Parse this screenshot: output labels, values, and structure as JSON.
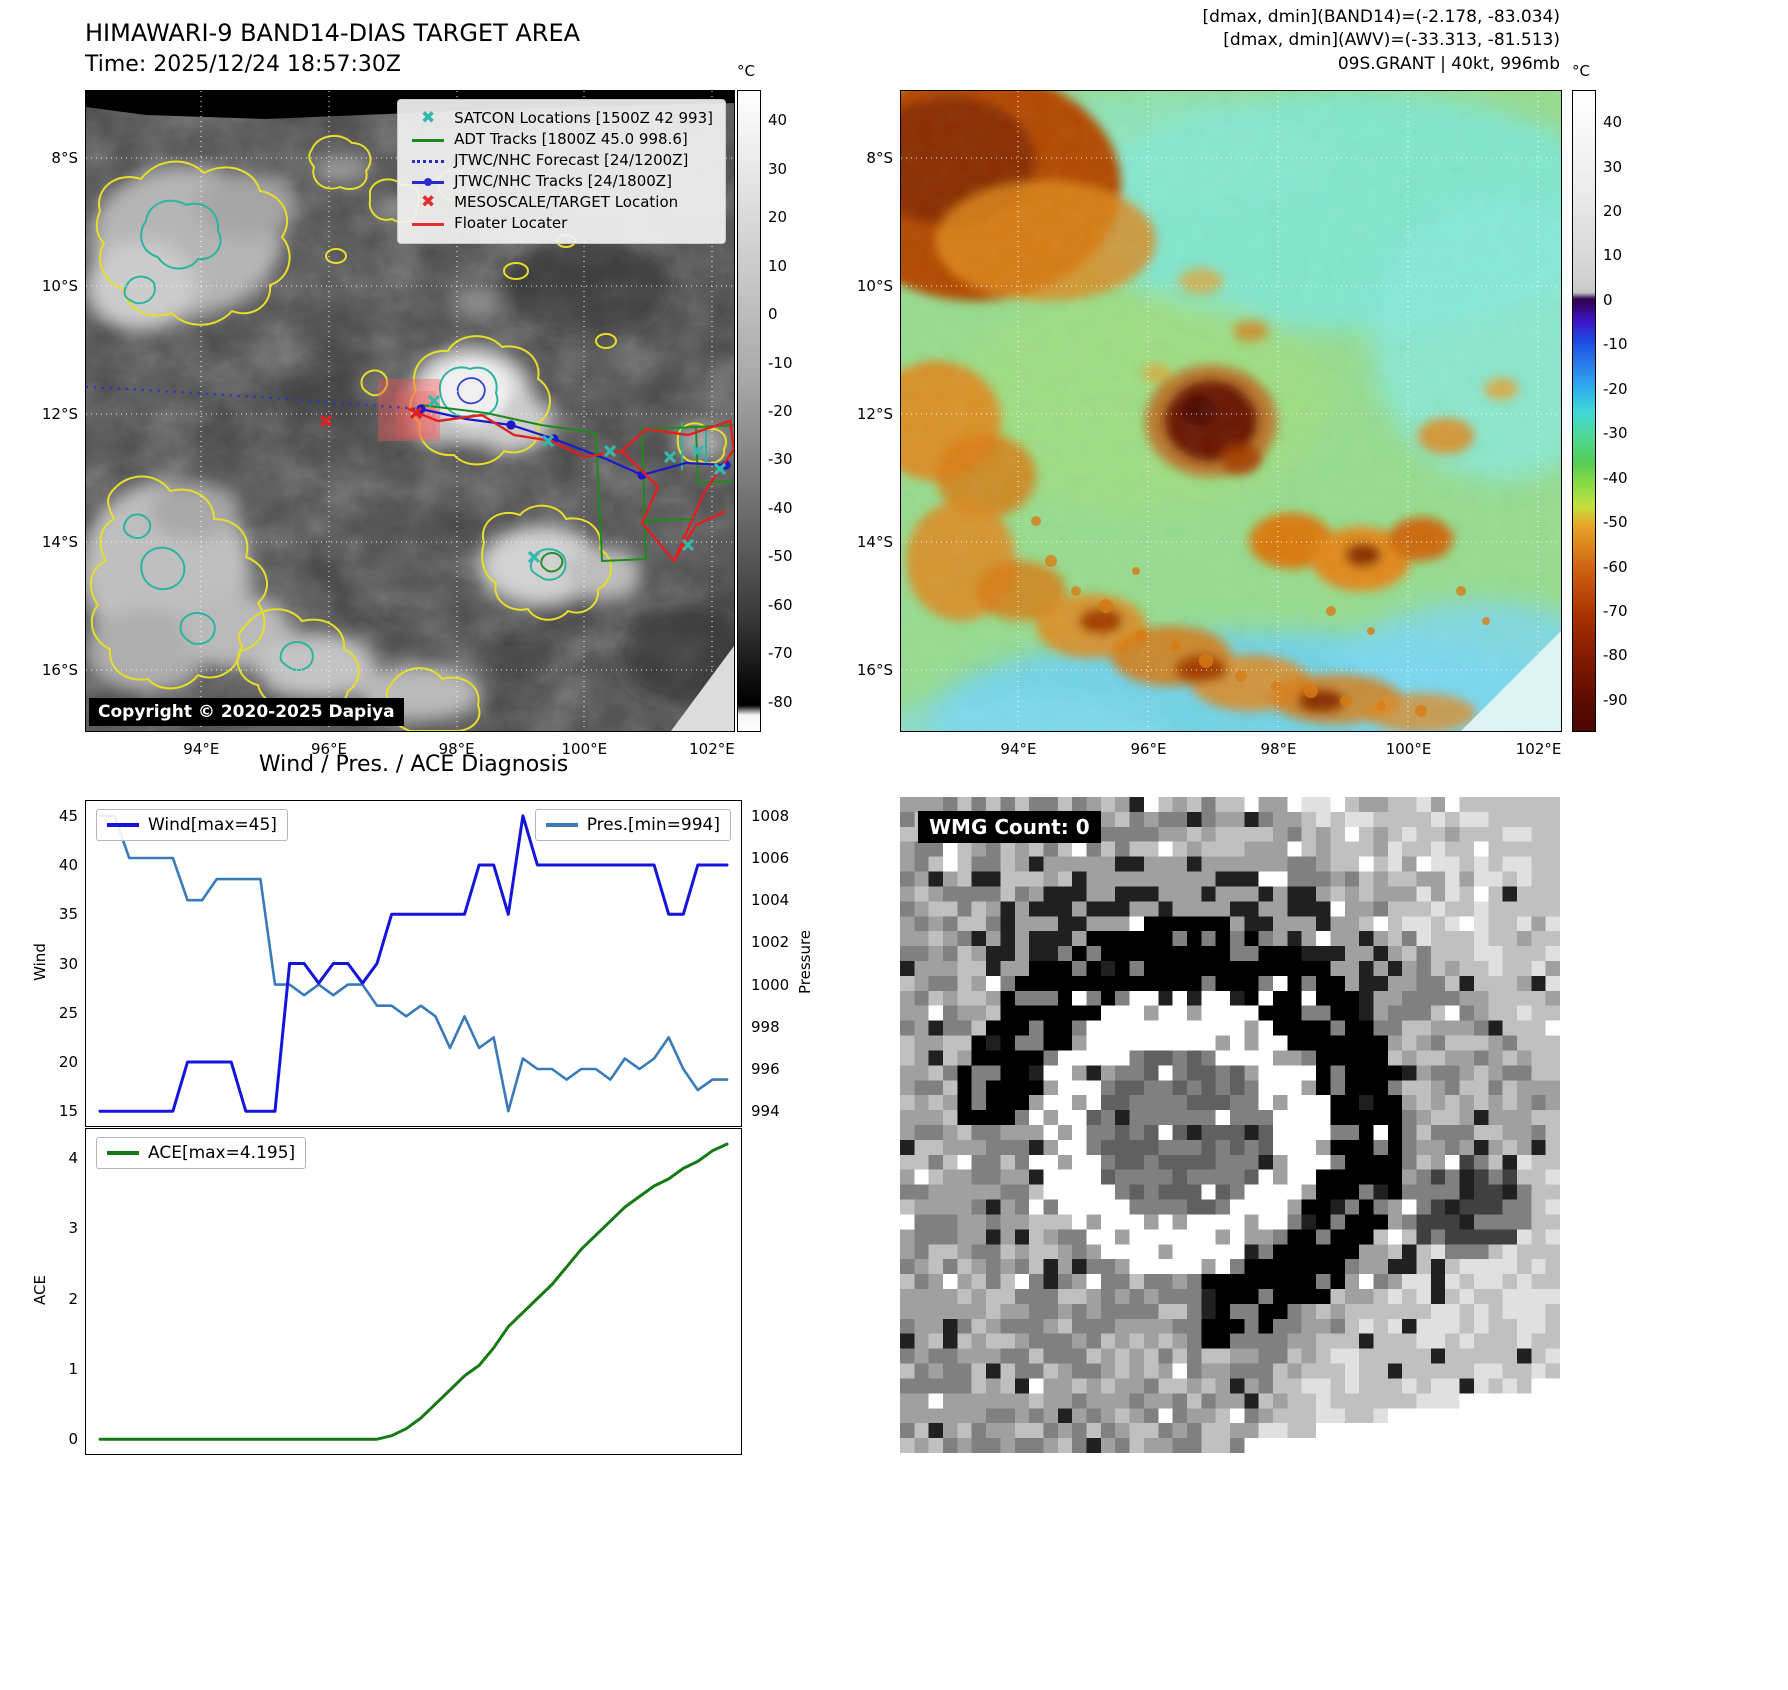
{
  "figure": {
    "background": "#ffffff",
    "accent_colors": {
      "wind_line": "#1414dc",
      "pressure_line": "#3a7ab8",
      "ace_line": "#157a15",
      "contour_yellow": "#e6df2a",
      "contour_teal": "#2bb5a0"
    }
  },
  "band14_panel": {
    "title": "HIMAWARI-9 BAND14-DIAS TARGET AREA",
    "subtitle": "Time: 2025/12/24 18:57:30Z",
    "copyright": "Copyright © 2020-2025 Dapiya",
    "colorbar_unit": "°C",
    "colorbar_ticks": [
      40,
      30,
      20,
      10,
      0,
      -10,
      -20,
      -30,
      -40,
      -50,
      -60,
      -70,
      -80
    ],
    "lat_ticks": [
      "8°S",
      "10°S",
      "12°S",
      "14°S",
      "16°S"
    ],
    "lon_ticks": [
      "94°E",
      "96°E",
      "98°E",
      "100°E",
      "102°E"
    ],
    "legend": [
      {
        "label": "SATCON Locations [1500Z 42 993]",
        "marker": "x",
        "color": "#35b8ac"
      },
      {
        "label": "ADT Tracks [1800Z 45.0 998.6]",
        "marker": "line",
        "color": "#1c8a1c"
      },
      {
        "label": "JTWC/NHC Forecast [24/1200Z]",
        "marker": "dotted",
        "color": "#2929cc"
      },
      {
        "label": "JTWC/NHC Tracks [24/1800Z]",
        "marker": "line-dot",
        "color": "#2929cc"
      },
      {
        "label": "MESOSCALE/TARGET Location",
        "marker": "x",
        "color": "#e03030"
      },
      {
        "label": "Floater Locater",
        "marker": "line",
        "color": "#e03030"
      }
    ]
  },
  "awv_panel": {
    "title_line1": "[dmax, dmin](BAND14)=(-2.178, -83.034)",
    "title_line2": "[dmax, dmin](AWV)=(-33.313, -81.513)",
    "title_line3": "09S.GRANT | 40kt, 996mb",
    "colorbar_unit": "°C",
    "colorbar_ticks": [
      40,
      30,
      20,
      10,
      0,
      -10,
      -20,
      -30,
      -40,
      -50,
      -60,
      -70,
      -80,
      -90
    ],
    "lat_ticks": [
      "8°S",
      "10°S",
      "12°S",
      "14°S",
      "16°S"
    ],
    "lon_ticks": [
      "94°E",
      "96°E",
      "98°E",
      "100°E",
      "102°E"
    ]
  },
  "wmg_panel": {
    "label": "WMG Count: 0"
  },
  "diagnosis": {
    "title": "Wind / Pres. / ACE Diagnosis"
  },
  "chart_data": [
    {
      "type": "line",
      "title": "Wind / Pres. / ACE Diagnosis",
      "x_note": "time steps, unlabeled x axis, 44 points",
      "series": [
        {
          "name": "Wind[max=45]",
          "axis": "left",
          "color": "#1414dc",
          "values": [
            15,
            15,
            15,
            15,
            15,
            15,
            20,
            20,
            20,
            20,
            15,
            15,
            15,
            30,
            30,
            28,
            30,
            30,
            28,
            30,
            35,
            35,
            35,
            35,
            35,
            35,
            40,
            40,
            35,
            45,
            40,
            40,
            40,
            40,
            40,
            40,
            40,
            40,
            40,
            35,
            35,
            40,
            40,
            40
          ]
        },
        {
          "name": "Pres.[min=994]",
          "axis": "right",
          "color": "#3a7ab8",
          "values": [
            1008,
            1008,
            1006,
            1006,
            1006,
            1006,
            1004,
            1004,
            1005,
            1005,
            1005,
            1005,
            1000,
            1000,
            999.5,
            1000,
            999.5,
            1000,
            1000,
            999,
            999,
            998.5,
            999,
            998.5,
            997,
            998.5,
            997,
            997.5,
            994,
            996.5,
            996,
            996,
            995.5,
            996,
            996,
            995.5,
            996.5,
            996,
            996.5,
            997.5,
            996,
            995,
            995.5,
            995.5
          ]
        }
      ],
      "left_axis": {
        "label": "Wind",
        "lim": [
          13.5,
          46.5
        ],
        "ticks": [
          15,
          20,
          25,
          30,
          35,
          40,
          45
        ]
      },
      "right_axis": {
        "label": "Pressure",
        "lim": [
          993.3,
          1008.7
        ],
        "ticks": [
          994,
          996,
          998,
          1000,
          1002,
          1004,
          1006,
          1008
        ]
      },
      "legend_position": [
        "upper left",
        "upper right"
      ],
      "grid": false
    },
    {
      "type": "line",
      "series": [
        {
          "name": "ACE[max=4.195]",
          "color": "#157a15",
          "values": [
            0,
            0,
            0,
            0,
            0,
            0,
            0,
            0,
            0,
            0,
            0,
            0,
            0,
            0,
            0,
            0,
            0,
            0,
            0,
            0,
            0.05,
            0.15,
            0.3,
            0.5,
            0.7,
            0.9,
            1.05,
            1.3,
            1.6,
            1.8,
            2.0,
            2.2,
            2.45,
            2.7,
            2.9,
            3.1,
            3.3,
            3.45,
            3.6,
            3.7,
            3.85,
            3.95,
            4.1,
            4.195
          ]
        }
      ],
      "left_axis": {
        "label": "ACE",
        "lim": [
          -0.21,
          4.41
        ],
        "ticks": [
          0,
          1,
          2,
          3,
          4
        ]
      },
      "legend_position": [
        "upper left"
      ],
      "grid": false
    }
  ]
}
